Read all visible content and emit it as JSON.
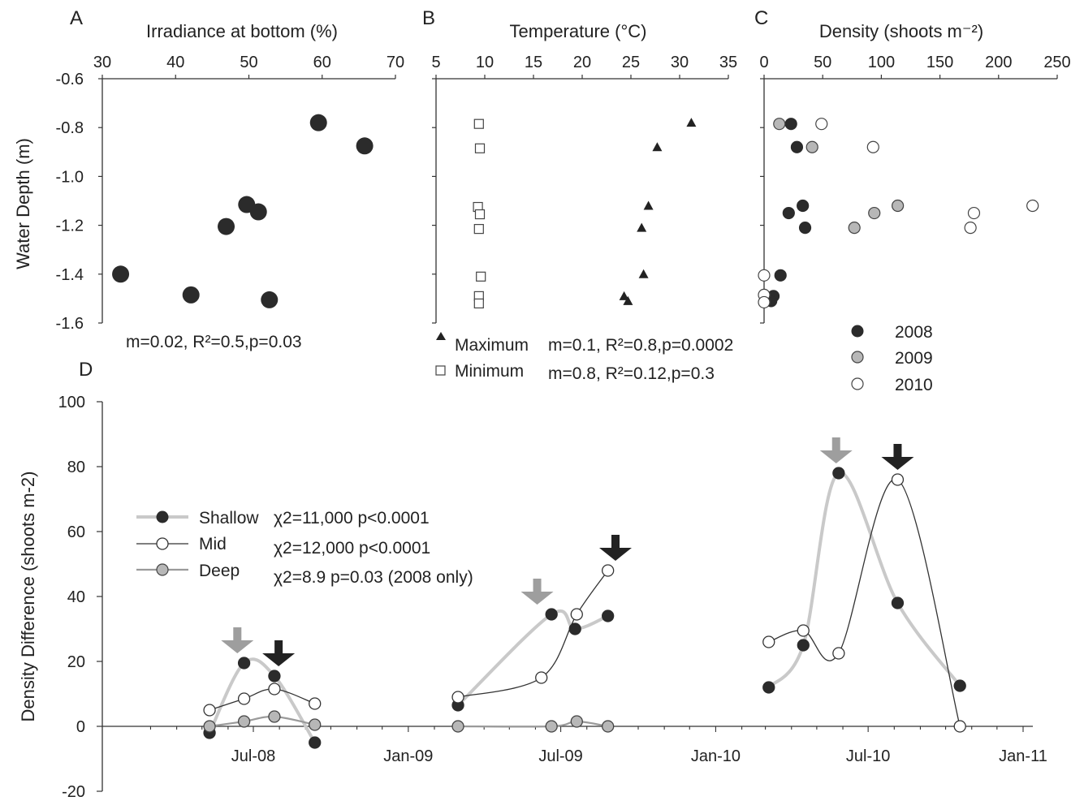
{
  "colors": {
    "y2008": "#2b2b2b",
    "y2009": "#b7b7b7",
    "y2010": "#ffffff",
    "shallow_line": "#c9c9c9",
    "mid_line": "#333333",
    "deep_line": "#9a9a9a",
    "arrow_gray": "#9e9e9e",
    "arrow_black": "#222222"
  },
  "chart_data": [
    {
      "panel": "A",
      "type": "scatter",
      "xlabel": "Irradiance at bottom (%)",
      "ylabel": "Water Depth (m)",
      "xlim": [
        30,
        70
      ],
      "ylim": [
        -1.6,
        -0.6
      ],
      "xticks": [
        "30",
        "40",
        "50",
        "60",
        "70"
      ],
      "yticks": [
        "-0.6",
        "-0.8",
        "-1.0",
        "-1.2",
        "-1.4",
        "-1.6"
      ],
      "points": [
        {
          "x": 59.5,
          "y": -0.78
        },
        {
          "x": 65.8,
          "y": -0.875
        },
        {
          "x": 49.7,
          "y": -1.115
        },
        {
          "x": 51.3,
          "y": -1.145
        },
        {
          "x": 46.9,
          "y": -1.205
        },
        {
          "x": 32.5,
          "y": -1.4
        },
        {
          "x": 42.1,
          "y": -1.485
        },
        {
          "x": 52.8,
          "y": -1.505
        }
      ],
      "annotation": "m=0.02, R²=0.5,p=0.03"
    },
    {
      "panel": "B",
      "type": "scatter",
      "xlabel": "Temperature (°C)",
      "xlim": [
        5,
        35
      ],
      "ylim": [
        -1.6,
        -0.6
      ],
      "xticks": [
        "5",
        "10",
        "15",
        "20",
        "25",
        "30",
        "35"
      ],
      "series": [
        {
          "name": "Maximum",
          "marker": "triangle",
          "points": [
            {
              "x": 31.2,
              "y": -0.78
            },
            {
              "x": 27.7,
              "y": -0.88
            },
            {
              "x": 26.8,
              "y": -1.12
            },
            {
              "x": 26.1,
              "y": -1.21
            },
            {
              "x": 26.3,
              "y": -1.4
            },
            {
              "x": 24.3,
              "y": -1.49
            },
            {
              "x": 24.7,
              "y": -1.51
            }
          ],
          "stat": "m=0.1, R²=0.8,p=0.0002"
        },
        {
          "name": "Minimum",
          "marker": "square",
          "points": [
            {
              "x": 9.4,
              "y": -0.785
            },
            {
              "x": 9.5,
              "y": -0.885
            },
            {
              "x": 9.3,
              "y": -1.125
            },
            {
              "x": 9.5,
              "y": -1.155
            },
            {
              "x": 9.4,
              "y": -1.215
            },
            {
              "x": 9.6,
              "y": -1.41
            },
            {
              "x": 9.4,
              "y": -1.49
            },
            {
              "x": 9.4,
              "y": -1.52
            }
          ],
          "stat": "m=0.8, R²=0.12,p=0.3"
        }
      ]
    },
    {
      "panel": "C",
      "type": "scatter",
      "xlabel": "Density (shoots m⁻²)",
      "xlim": [
        0,
        250
      ],
      "ylim": [
        -1.6,
        -0.6
      ],
      "xticks": [
        "0",
        "50",
        "100",
        "150",
        "200",
        "250"
      ],
      "legend": [
        "2008",
        "2009",
        "2010"
      ],
      "series": [
        {
          "name": "2008",
          "points": [
            {
              "x": 23,
              "y": -0.785
            },
            {
              "x": 28,
              "y": -0.88
            },
            {
              "x": 33,
              "y": -1.12
            },
            {
              "x": 21,
              "y": -1.15
            },
            {
              "x": 35,
              "y": -1.21
            },
            {
              "x": 14,
              "y": -1.405
            },
            {
              "x": 8,
              "y": -1.49
            },
            {
              "x": 6,
              "y": -1.51
            }
          ]
        },
        {
          "name": "2009",
          "points": [
            {
              "x": 13,
              "y": -0.785
            },
            {
              "x": 41,
              "y": -0.88
            },
            {
              "x": 114,
              "y": -1.12
            },
            {
              "x": 94,
              "y": -1.15
            },
            {
              "x": 77,
              "y": -1.21
            }
          ]
        },
        {
          "name": "2010",
          "points": [
            {
              "x": 49,
              "y": -0.785
            },
            {
              "x": 93,
              "y": -0.88
            },
            {
              "x": 229,
              "y": -1.12
            },
            {
              "x": 179,
              "y": -1.15
            },
            {
              "x": 176,
              "y": -1.21
            },
            {
              "x": 0,
              "y": -1.405
            },
            {
              "x": 0,
              "y": -1.485
            },
            {
              "x": 0,
              "y": -1.515
            }
          ]
        }
      ]
    },
    {
      "panel": "D",
      "type": "line",
      "ylabel": "Density Difference (shoots m-2)",
      "ylim": [
        -20,
        100
      ],
      "yticks": [
        "100",
        "80",
        "60",
        "40",
        "20",
        "0",
        "-20"
      ],
      "xticks": [
        "Jul-08",
        "Jan-09",
        "Jul-09",
        "Jan-10",
        "Jul-10",
        "Jan-11"
      ],
      "series": [
        {
          "name": "Shallow",
          "stat": "χ2=11,000 p<0.0001",
          "segments": [
            [
              {
                "x": "2008-05-10",
                "y": -2
              },
              {
                "x": "2008-06-20",
                "y": 19.5
              },
              {
                "x": "2008-07-26",
                "y": 15.5
              },
              {
                "x": "2008-09-12",
                "y": -5
              }
            ],
            [
              {
                "x": "2009-03-01",
                "y": 6.5
              },
              {
                "x": "2009-06-20",
                "y": 34.5
              },
              {
                "x": "2009-07-18",
                "y": 30
              },
              {
                "x": "2009-08-26",
                "y": 34
              }
            ],
            [
              {
                "x": "2010-03-05",
                "y": 12
              },
              {
                "x": "2010-04-15",
                "y": 25
              },
              {
                "x": "2010-05-27",
                "y": 78
              },
              {
                "x": "2010-08-05",
                "y": 38
              },
              {
                "x": "2010-10-18",
                "y": 12.5
              }
            ]
          ]
        },
        {
          "name": "Mid",
          "stat": "χ2=12,000 p<0.0001",
          "segments": [
            [
              {
                "x": "2008-05-10",
                "y": 5
              },
              {
                "x": "2008-06-20",
                "y": 8.5
              },
              {
                "x": "2008-07-26",
                "y": 11.5
              },
              {
                "x": "2008-09-12",
                "y": 7
              }
            ],
            [
              {
                "x": "2009-03-01",
                "y": 9
              },
              {
                "x": "2009-06-08",
                "y": 15
              },
              {
                "x": "2009-07-20",
                "y": 34.5
              },
              {
                "x": "2009-08-26",
                "y": 48
              }
            ],
            [
              {
                "x": "2010-03-05",
                "y": 26
              },
              {
                "x": "2010-04-15",
                "y": 29.5
              },
              {
                "x": "2010-05-27",
                "y": 22.5
              },
              {
                "x": "2010-08-05",
                "y": 76
              },
              {
                "x": "2010-10-18",
                "y": 0
              }
            ]
          ]
        },
        {
          "name": "Deep",
          "stat": "χ2=8.9 p=0.03 (2008 only)",
          "segments": [
            [
              {
                "x": "2008-05-10",
                "y": 0
              },
              {
                "x": "2008-06-20",
                "y": 1.5
              },
              {
                "x": "2008-07-26",
                "y": 3
              },
              {
                "x": "2008-09-12",
                "y": 0.5
              }
            ],
            [
              {
                "x": "2009-03-01",
                "y": 0
              },
              {
                "x": "2009-06-20",
                "y": 0
              },
              {
                "x": "2009-07-20",
                "y": 1.5
              },
              {
                "x": "2009-08-26",
                "y": 0
              }
            ]
          ]
        }
      ],
      "peak_arrows": [
        {
          "color": "gray",
          "x": "2008-06-12",
          "y": 19.5
        },
        {
          "color": "black",
          "x": "2008-07-31",
          "y": 15.5
        },
        {
          "color": "gray",
          "x": "2009-06-03",
          "y": 34.5
        },
        {
          "color": "black",
          "x": "2009-09-04",
          "y": 48
        },
        {
          "color": "gray",
          "x": "2010-05-24",
          "y": 78
        },
        {
          "color": "black",
          "x": "2010-08-05",
          "y": 76
        }
      ]
    }
  ]
}
